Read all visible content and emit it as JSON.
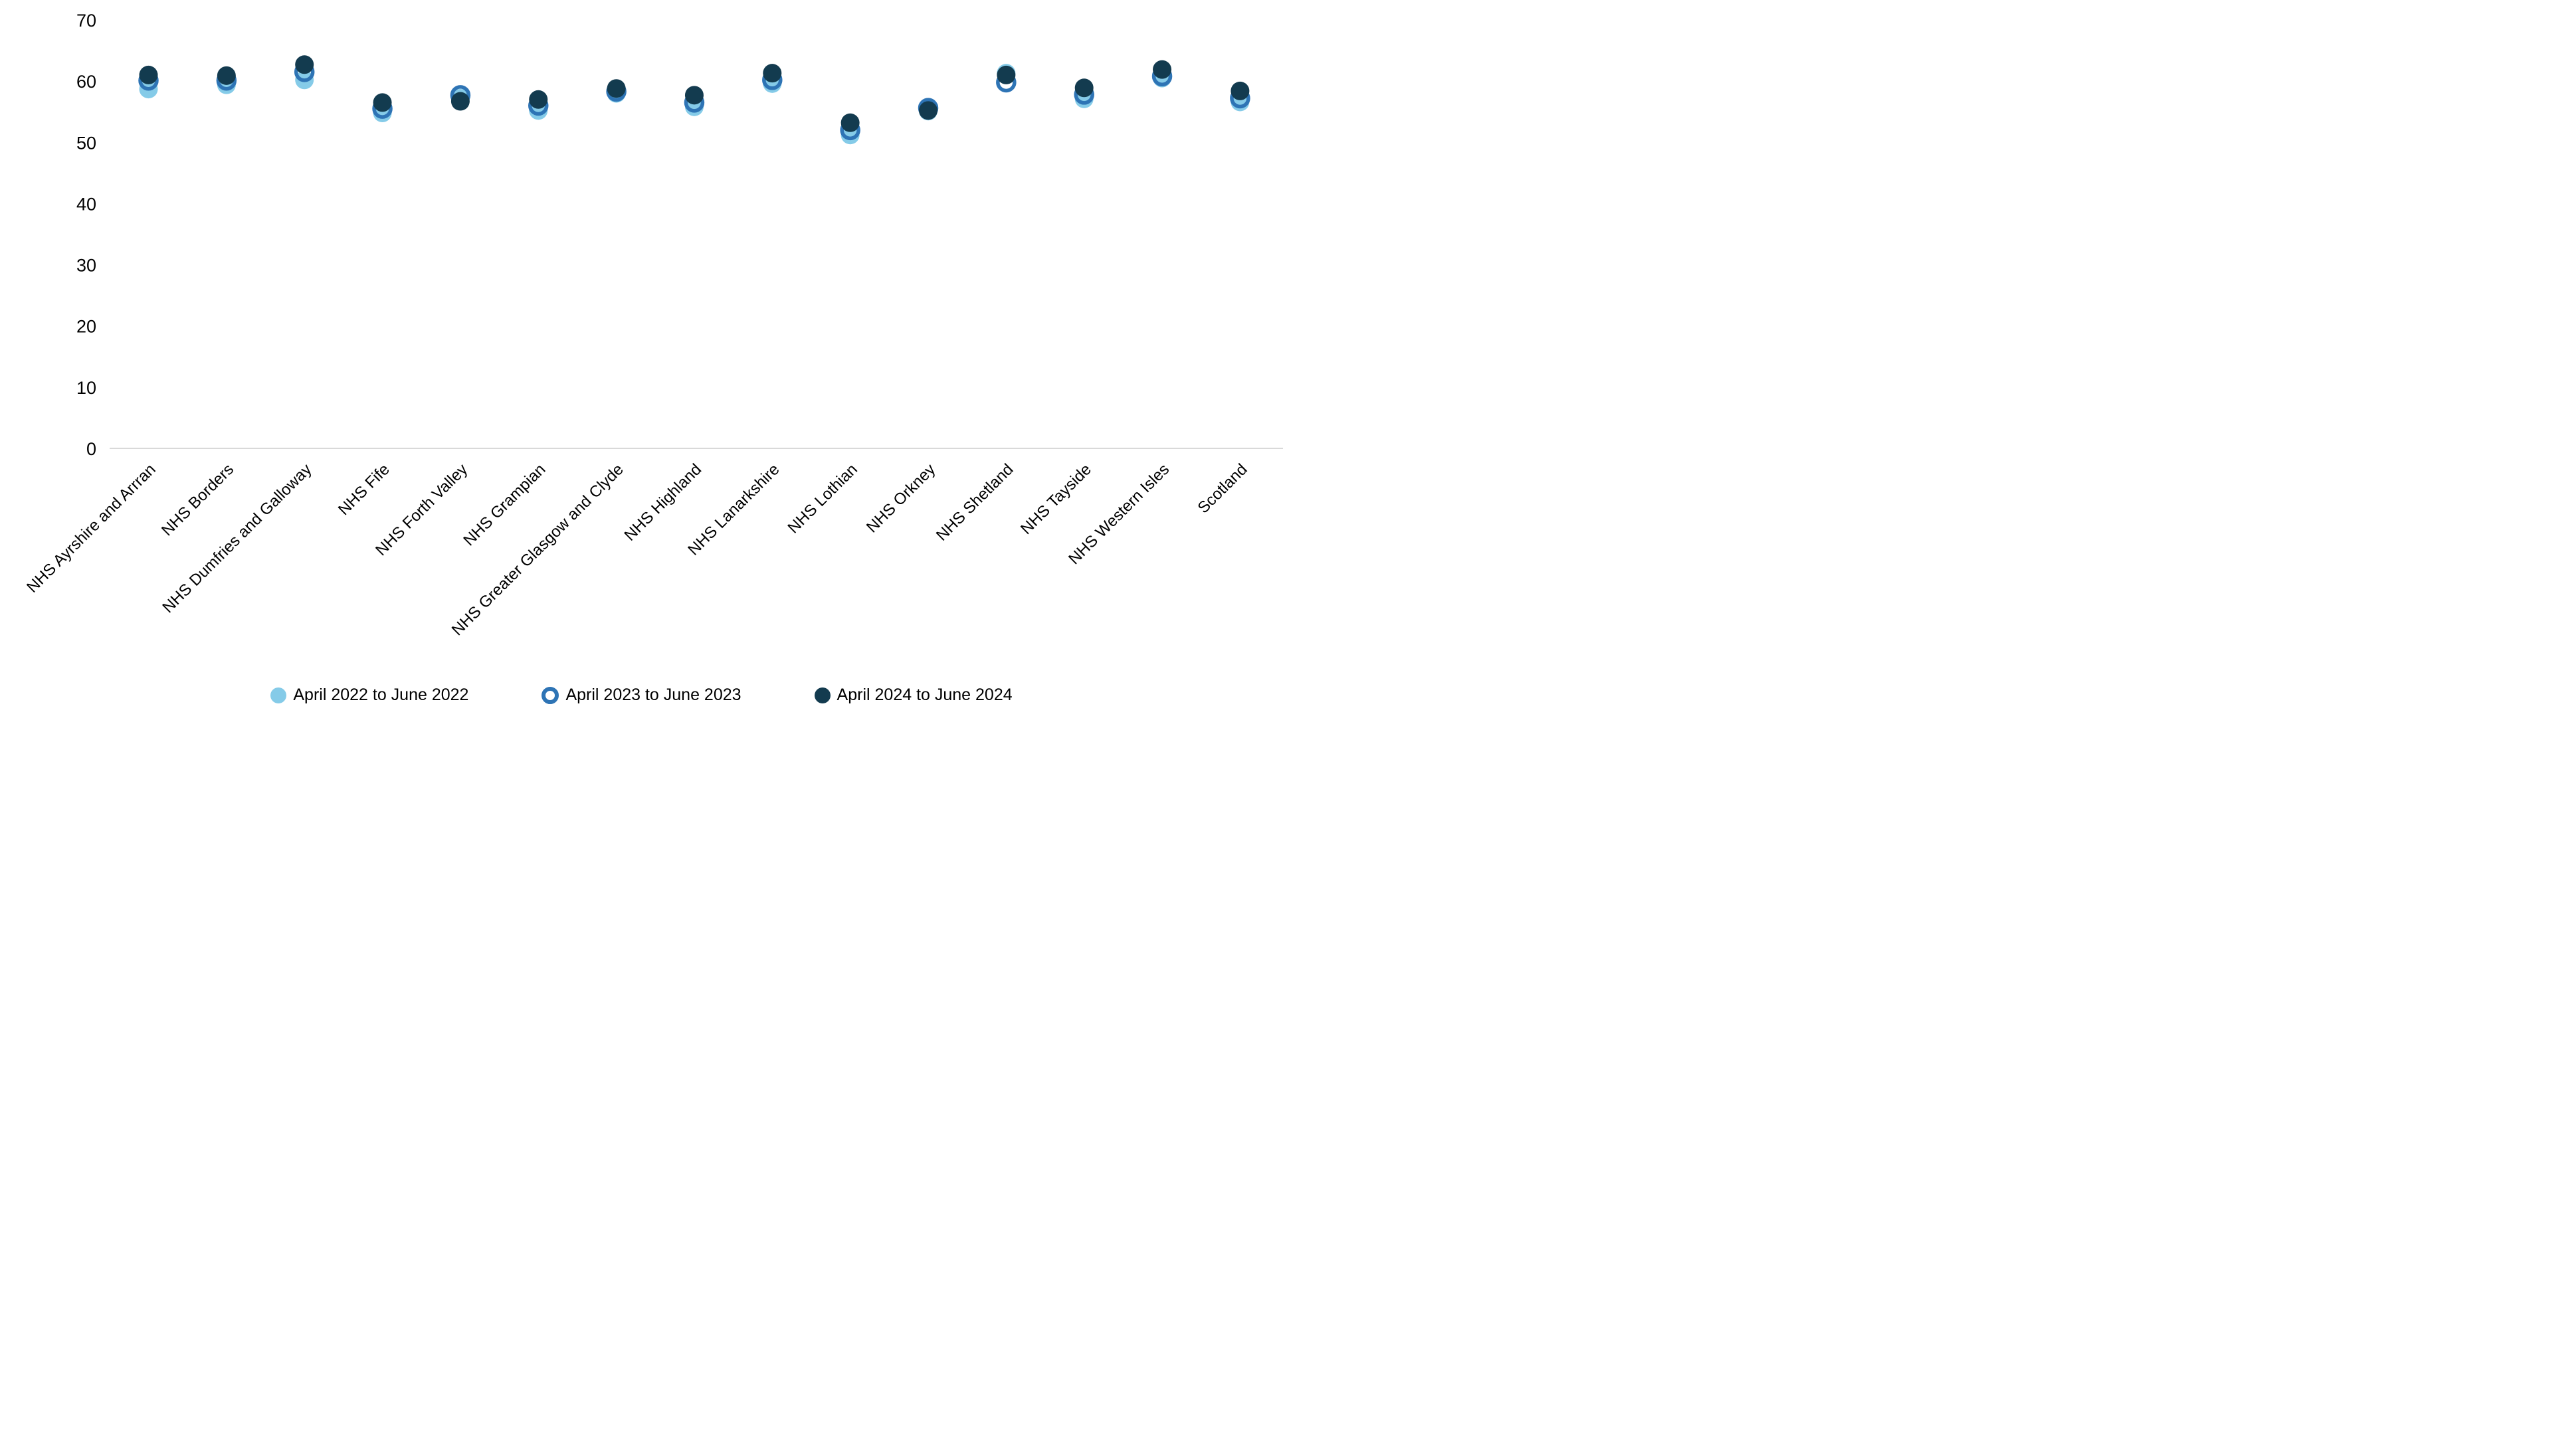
{
  "chart_data": {
    "type": "scatter",
    "title": "",
    "xlabel": "",
    "ylabel": "",
    "categories": [
      "NHS Ayrshire and Arrran",
      "NHS Borders",
      "NHS Dumfries and Galloway",
      "NHS Fife",
      "NHS Forth Valley",
      "NHS Grampian",
      "NHS Greater Glasgow and Clyde",
      "NHS Highland",
      "NHS Lanarkshire",
      "NHS Lothian",
      "NHS Orkney",
      "NHS Shetland",
      "NHS Tayside",
      "NHS Western Isles",
      "Scotland"
    ],
    "series": [
      {
        "name": "April 2022 to June 2022",
        "marker": "filled-circle",
        "color": "#85CBE8",
        "values": [
          58.7,
          59.4,
          60.2,
          54.8,
          57.2,
          55.2,
          58.0,
          55.8,
          59.6,
          51.2,
          55.1,
          61.3,
          57.1,
          60.5,
          56.6
        ]
      },
      {
        "name": "April 2023 to June 2023",
        "marker": "open-circle",
        "color": "#2E74B5",
        "values": [
          60.1,
          60.1,
          61.5,
          55.5,
          57.7,
          56.0,
          58.3,
          56.5,
          60.2,
          52.0,
          55.6,
          59.8,
          57.8,
          60.8,
          57.2
        ]
      },
      {
        "name": "April 2024 to June 2024",
        "marker": "filled-circle",
        "color": "#133B4F",
        "values": [
          61.0,
          60.9,
          62.7,
          56.5,
          56.7,
          57.0,
          58.8,
          57.7,
          61.3,
          53.2,
          55.2,
          61.0,
          58.9,
          61.9,
          58.4
        ]
      }
    ],
    "ylim": [
      0,
      70
    ],
    "yticks": [
      0,
      10,
      20,
      30,
      40,
      50,
      60,
      70
    ],
    "grid": false,
    "legend_position": "bottom",
    "axis_color": "#D9D9D9",
    "text_color": "#000000"
  }
}
